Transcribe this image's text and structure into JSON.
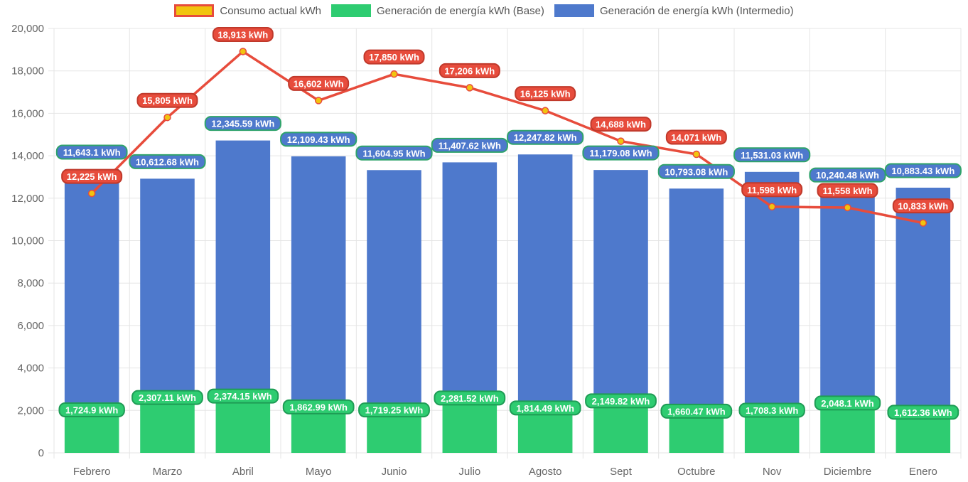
{
  "chart_data": {
    "type": "bar",
    "categories": [
      "Febrero",
      "Marzo",
      "Abril",
      "Mayo",
      "Junio",
      "Julio",
      "Agosto",
      "Sept",
      "Octubre",
      "Nov",
      "Diciembre",
      "Enero"
    ],
    "stacked": true,
    "ylim": [
      0,
      20000
    ],
    "yticks": [
      0,
      2000,
      4000,
      6000,
      8000,
      10000,
      12000,
      14000,
      16000,
      18000,
      20000
    ],
    "ytick_labels": [
      "0",
      "2,000",
      "4,000",
      "6,000",
      "8,000",
      "10,000",
      "12,000",
      "14,000",
      "16,000",
      "18,000",
      "20,000"
    ],
    "grid": true,
    "legend_position": "top",
    "series": [
      {
        "name": "Consumo actual kWh",
        "type": "line",
        "color": "#e74c3c",
        "point_color": "#f1c40f",
        "values": [
          12225,
          15805,
          18913,
          16602,
          17850,
          17206,
          16125,
          14688,
          14071,
          11598,
          11558,
          10833
        ],
        "labels": [
          "12,225 kWh",
          "15,805 kWh",
          "18,913 kWh",
          "16,602 kWh",
          "17,850 kWh",
          "17,206 kWh",
          "16,125 kWh",
          "14,688 kWh",
          "14,071 kWh",
          "11,598 kWh",
          "11,558 kWh",
          "10,833 kWh"
        ]
      },
      {
        "name": "Generación de energía kWh (Base)",
        "type": "bar",
        "color": "#2ecc71",
        "values": [
          1724.9,
          2307.11,
          2374.15,
          1862.99,
          1719.25,
          2281.52,
          1814.49,
          2149.82,
          1660.47,
          1708.3,
          2048.1,
          1612.36
        ],
        "labels": [
          "1,724.9 kWh",
          "2,307.11 kWh",
          "2,374.15 kWh",
          "1,862.99 kWh",
          "1,719.25 kWh",
          "2,281.52 kWh",
          "1,814.49 kWh",
          "2,149.82 kWh",
          "1,660.47 kWh",
          "1,708.3 kWh",
          "2,048.1 kWh",
          "1,612.36 kWh"
        ]
      },
      {
        "name": "Generación de energía kWh (Intermedio)",
        "type": "bar",
        "color": "#4e79cc",
        "values": [
          11643.1,
          10612.68,
          12345.59,
          12109.43,
          11604.95,
          11407.62,
          12247.82,
          11179.08,
          10793.08,
          11531.03,
          10240.48,
          10883.43
        ],
        "labels": [
          "11,643.1 kWh",
          "10,612.68 kWh",
          "12,345.59 kWh",
          "12,109.43 kWh",
          "11,604.95 kWh",
          "11,407.62 kWh",
          "12,247.82 kWh",
          "11,179.08 kWh",
          "10,793.08 kWh",
          "11,531.03 kWh",
          "10,240.48 kWh",
          "10,883.43 kWh"
        ]
      }
    ]
  }
}
